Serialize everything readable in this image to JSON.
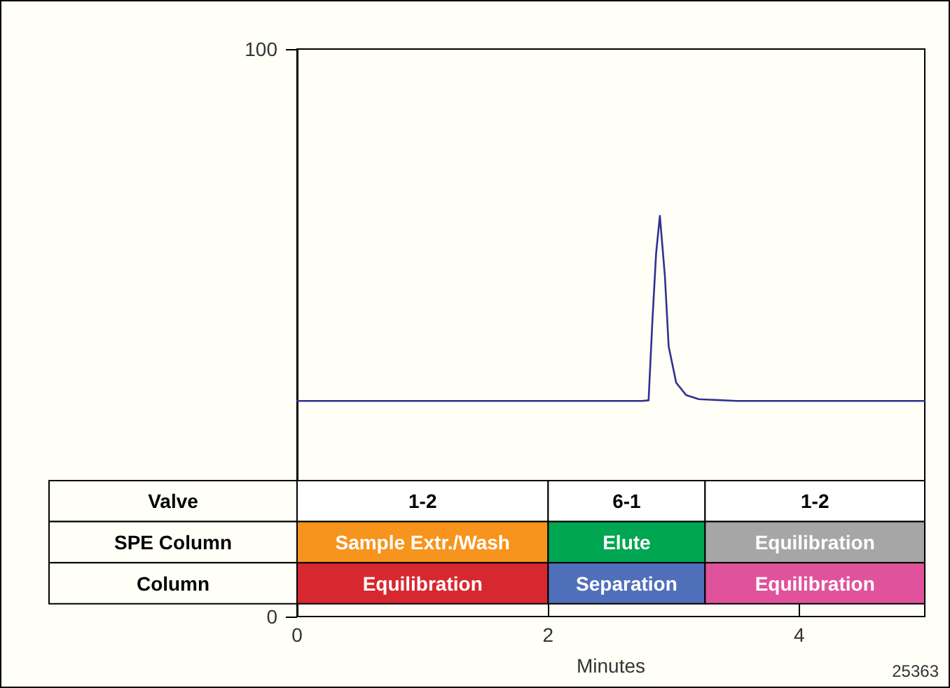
{
  "chart_data": {
    "type": "line",
    "xlabel": "Minutes",
    "x": [
      0,
      0.5,
      1,
      1.5,
      2,
      2.5,
      2.75,
      2.8,
      2.83,
      2.86,
      2.89,
      2.93,
      2.96,
      3.02,
      3.1,
      3.2,
      3.5,
      4,
      4.5,
      5
    ],
    "series": [
      {
        "color": "#2e3192",
        "values": [
          38,
          38,
          38,
          38,
          38,
          38,
          38,
          38.1,
          51.9,
          64,
          70.6,
          60,
          47.6,
          41.2,
          39,
          38.3,
          38,
          38,
          38,
          38
        ]
      }
    ],
    "xlim": [
      0,
      5
    ],
    "xticks": [
      0,
      2,
      4
    ],
    "ylim": [
      0,
      100
    ],
    "yticks": [
      0,
      100
    ],
    "grid": false,
    "bands": [
      {
        "axis": "x",
        "from": 0,
        "to": 2,
        "label": "1-2",
        "color": "#ffffff"
      },
      {
        "axis": "x",
        "from": 2,
        "to": 3.25,
        "label": "6-1",
        "color": "#ffffff"
      },
      {
        "axis": "x",
        "from": 3.25,
        "to": 5,
        "label": "1-2",
        "color": "#ffffff"
      },
      {
        "axis": "x",
        "from": 0,
        "to": 2,
        "label": "Sample Extr./Wash",
        "color": "#f7941d"
      },
      {
        "axis": "x",
        "from": 2,
        "to": 3.25,
        "label": "Elute",
        "color": "#00a651"
      },
      {
        "axis": "x",
        "from": 3.25,
        "to": 5,
        "label": "Equilibration",
        "color": "#a6a6a6"
      },
      {
        "axis": "x",
        "from": 0,
        "to": 2,
        "label": "Equilibration",
        "color": "#d7282f"
      },
      {
        "axis": "x",
        "from": 2,
        "to": 3.25,
        "label": "Separation",
        "color": "#4f6fba"
      },
      {
        "axis": "x",
        "from": 3.25,
        "to": 5,
        "label": "Equilibration",
        "color": "#e0529c"
      }
    ],
    "annotations": [
      "Valve",
      "SPE Column",
      "Column",
      "25363"
    ]
  }
}
